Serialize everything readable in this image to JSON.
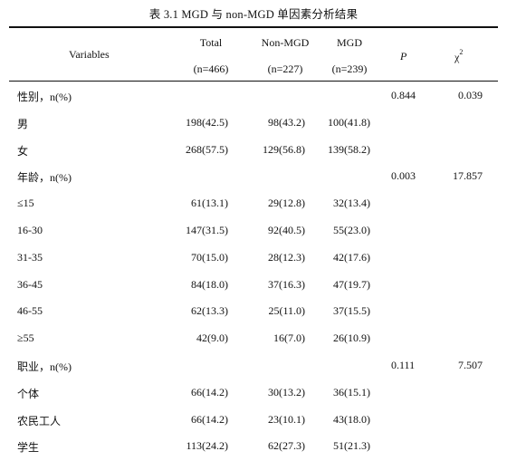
{
  "title": "表 3.1 MGD 与 non-MGD 单因素分析结果",
  "header": {
    "variables": "Variables",
    "total_label": "Total",
    "total_n": "(n=466)",
    "non_label": "Non-MGD",
    "non_n": "(n=227)",
    "mgd_label": "MGD",
    "mgd_n": "(n=239)",
    "p_label": "P",
    "chi_label": "χ",
    "chi_sup": "2"
  },
  "rows": [
    {
      "label": "性别，n(%)",
      "total": "",
      "non": "",
      "mgd": "",
      "p": "0.844",
      "chi": "0.039"
    },
    {
      "label": "男",
      "total": "198(42.5)",
      "non": "98(43.2)",
      "mgd": "100(41.8)",
      "p": "",
      "chi": ""
    },
    {
      "label": "女",
      "total": "268(57.5)",
      "non": "129(56.8)",
      "mgd": "139(58.2)",
      "p": "",
      "chi": ""
    },
    {
      "label": "年龄，n(%)",
      "total": "",
      "non": "",
      "mgd": "",
      "p": "0.003",
      "chi": "17.857"
    },
    {
      "label": "≤15",
      "total": "61(13.1)",
      "non": "29(12.8)",
      "mgd": "32(13.4)",
      "p": "",
      "chi": ""
    },
    {
      "label": "16-30",
      "total": "147(31.5)",
      "non": "92(40.5)",
      "mgd": "55(23.0)",
      "p": "",
      "chi": ""
    },
    {
      "label": "31-35",
      "total": "70(15.0)",
      "non": "28(12.3)",
      "mgd": "42(17.6)",
      "p": "",
      "chi": ""
    },
    {
      "label": "36-45",
      "total": "84(18.0)",
      "non": "37(16.3)",
      "mgd": "47(19.7)",
      "p": "",
      "chi": ""
    },
    {
      "label": "46-55",
      "total": "62(13.3)",
      "non": "25(11.0)",
      "mgd": "37(15.5)",
      "p": "",
      "chi": ""
    },
    {
      "label": "≥55",
      "total": "42(9.0)",
      "non": "16(7.0)",
      "mgd": "26(10.9)",
      "p": "",
      "chi": ""
    },
    {
      "label": "职业，n(%)",
      "total": "",
      "non": "",
      "mgd": "",
      "p": "0.111",
      "chi": "7.507"
    },
    {
      "label": "个体",
      "total": "66(14.2)",
      "non": "30(13.2)",
      "mgd": "36(15.1)",
      "p": "",
      "chi": ""
    },
    {
      "label": "农民工人",
      "total": "66(14.2)",
      "non": "23(10.1)",
      "mgd": "43(18.0)",
      "p": "",
      "chi": ""
    },
    {
      "label": "学生",
      "total": "113(24.2)",
      "non": "62(27.3)",
      "mgd": "51(21.3)",
      "p": "",
      "chi": ""
    }
  ]
}
